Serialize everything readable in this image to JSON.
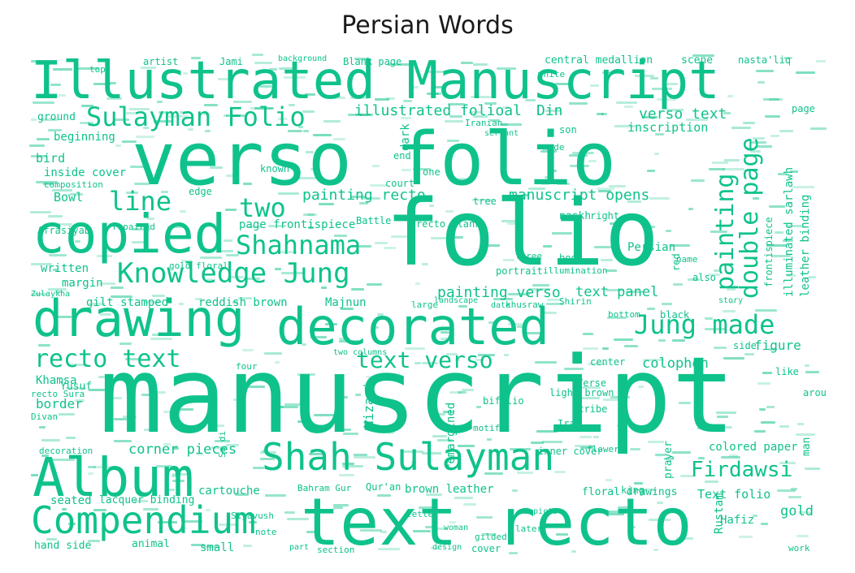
{
  "title": "Persian Words",
  "accent_color": "#0fc28c",
  "words": [
    "Illustrated Manuscript",
    "verso folio",
    "folio",
    "manuscript",
    "copied",
    "drawing",
    "decorated",
    "Album",
    "Compendium",
    "text recto",
    "Shah Sulayman",
    "Knowledge Jung",
    "Sulayman Folio",
    "Shahnama",
    "recto text",
    "text verso",
    "Jung made",
    "painting",
    "double page",
    "Firdawsi",
    "line",
    "two",
    "painting recto",
    "painting verso",
    "manuscript opens",
    "illustrated folioal",
    "Din",
    "verso text",
    "inscription",
    "text panel",
    "colophon",
    "figure",
    "corner pieces",
    "gilt stamped",
    "reddish brown",
    "Majnun",
    "Khamsa",
    "Yusuf",
    "border",
    "Bowl",
    "bird",
    "beginning",
    "inside cover",
    "written",
    "margin",
    "recto Sura",
    "Nizami",
    "Persian",
    "Rustam",
    "Hafiz",
    "gold",
    "colored paper",
    "Text folio",
    "brown leather",
    "Qur'an",
    "cartouche",
    "Bahram Gur",
    "seated",
    "lacquer binding",
    "hand side",
    "animal",
    "small",
    "section",
    "cover",
    "central medallion",
    "scene",
    "nasta'liq",
    "artist",
    "Blank page",
    "Jami",
    "background",
    "top",
    "ground",
    "composition",
    "Afrasiyab",
    "page frontispiece",
    "recto Blank",
    "naskh",
    "right",
    "page",
    "illuminated sarlawh",
    "leather binding",
    "frontispiece",
    "black",
    "bottom",
    "khusraw",
    "Shirin",
    "date",
    "landscape",
    "center",
    "bifolio",
    "light brown",
    "scribe",
    "Verse",
    "remargined",
    "Iran",
    "inner cover",
    "flower",
    "king",
    "floral drawings",
    "prayer",
    "man",
    "around",
    "like",
    "side",
    "also",
    "story",
    "name",
    "red",
    "book",
    "portrait",
    "three",
    "tree",
    "court",
    "Battle",
    "edge",
    "known",
    "end",
    "one",
    "dark",
    "made",
    "son",
    "Iranian",
    "servant",
    "illumination",
    "decoration",
    "Divan",
    "Zulaykha",
    "Sa di",
    "two columns",
    "four",
    "motif",
    "large",
    "repaired",
    "gold floral",
    "white",
    "letter",
    "woman",
    "design",
    "part",
    "note",
    "Siyavush",
    "gilded",
    "later",
    "depicts",
    "work"
  ]
}
